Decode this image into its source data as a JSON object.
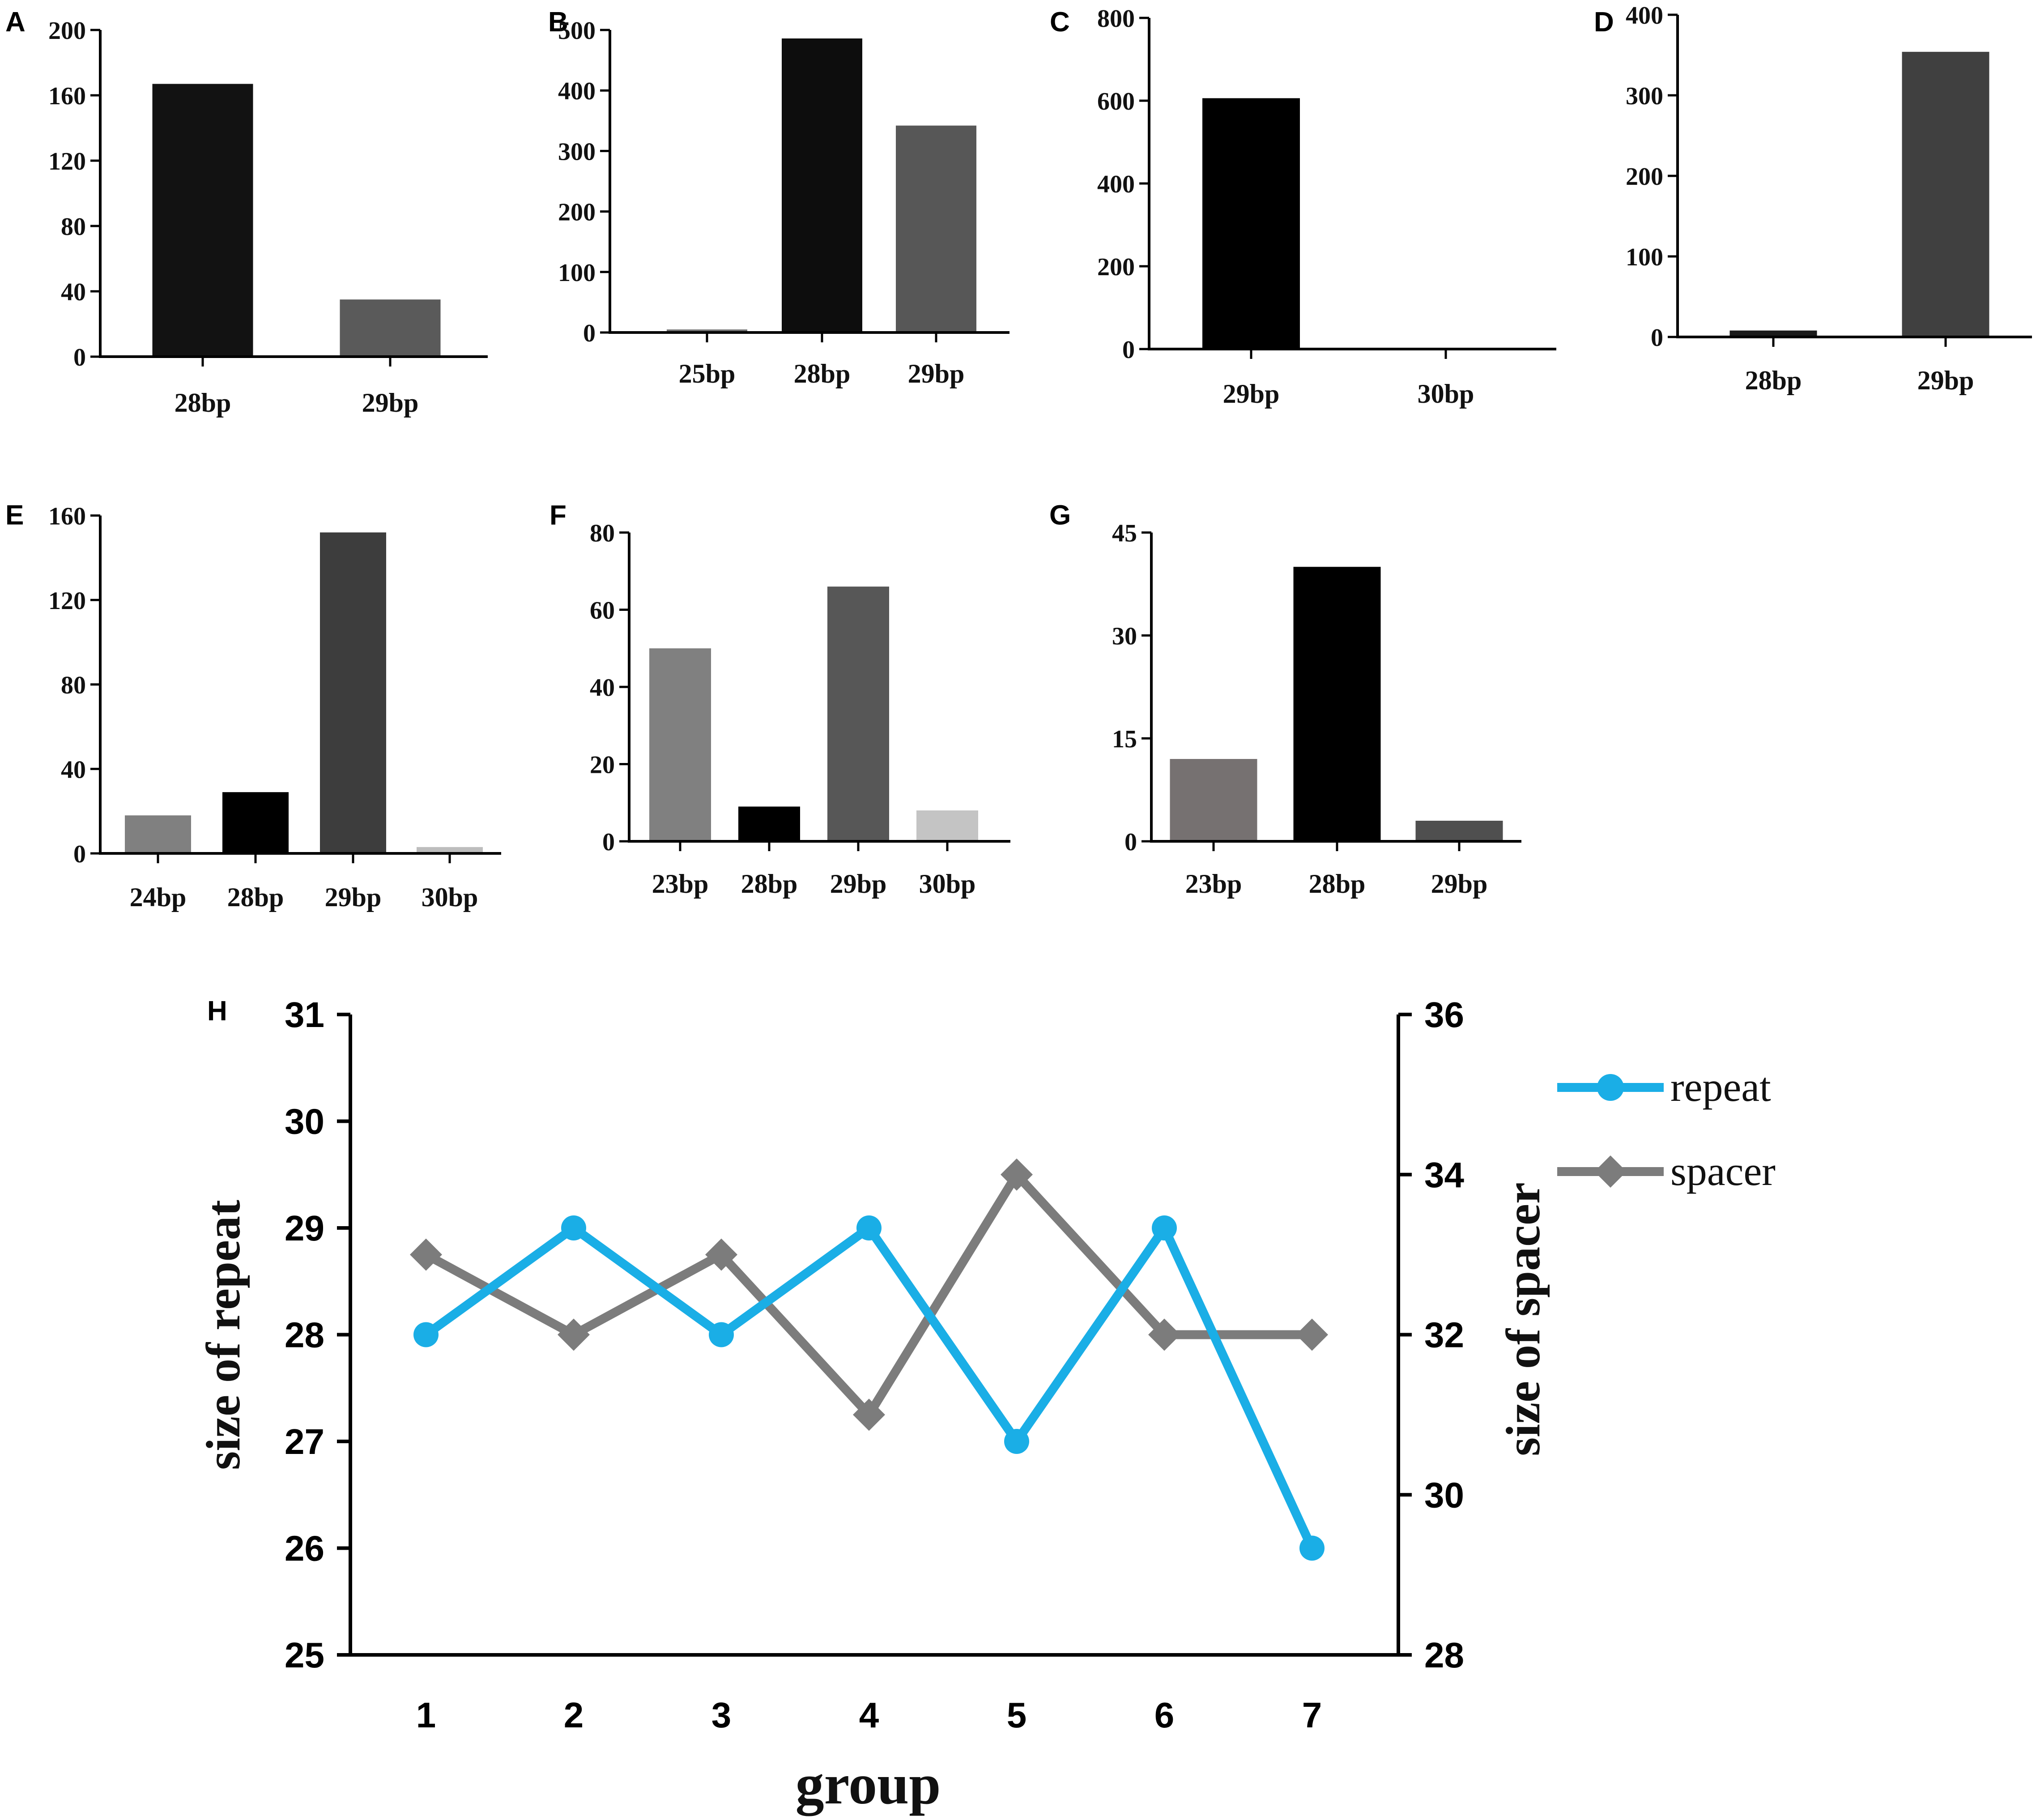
{
  "chart_data": [
    {
      "panel": "A",
      "type": "bar",
      "categories": [
        "28bp",
        "29bp"
      ],
      "values": [
        167,
        35
      ],
      "colors": [
        "#121212",
        "#5a5a5a"
      ],
      "ylim": [
        0,
        200
      ],
      "yticks": [
        0,
        40,
        80,
        120,
        160,
        200
      ]
    },
    {
      "panel": "B",
      "type": "bar",
      "categories": [
        "25bp",
        "28bp",
        "29bp"
      ],
      "values": [
        5,
        486,
        342
      ],
      "colors": [
        "#6e6e6e",
        "#0d0d0d",
        "#575757"
      ],
      "ylim": [
        0,
        500
      ],
      "yticks": [
        0,
        100,
        200,
        300,
        400,
        500
      ]
    },
    {
      "panel": "C",
      "type": "bar",
      "categories": [
        "29bp",
        "30bp"
      ],
      "values": [
        606,
        2
      ],
      "colors": [
        "#000000",
        "#7a7a7a"
      ],
      "ylim": [
        0,
        800
      ],
      "yticks": [
        0,
        200,
        400,
        600,
        800
      ]
    },
    {
      "panel": "D",
      "type": "bar",
      "categories": [
        "28bp",
        "29bp"
      ],
      "values": [
        8,
        354
      ],
      "colors": [
        "#1a1a1a",
        "#404040"
      ],
      "ylim": [
        0,
        400
      ],
      "yticks": [
        0,
        100,
        200,
        300,
        400
      ]
    },
    {
      "panel": "E",
      "type": "bar",
      "categories": [
        "24bp",
        "28bp",
        "29bp",
        "30bp"
      ],
      "values": [
        18,
        29,
        152,
        3
      ],
      "colors": [
        "#808080",
        "#000000",
        "#3d3d3d",
        "#bdbdbd"
      ],
      "ylim": [
        0,
        160
      ],
      "yticks": [
        0,
        40,
        80,
        120,
        160
      ]
    },
    {
      "panel": "F",
      "type": "bar",
      "categories": [
        "23bp",
        "28bp",
        "29bp",
        "30bp"
      ],
      "values": [
        50,
        9,
        66,
        8
      ],
      "colors": [
        "#808080",
        "#000000",
        "#575757",
        "#c4c4c4"
      ],
      "ylim": [
        0,
        80
      ],
      "yticks": [
        0,
        20,
        40,
        60,
        80
      ]
    },
    {
      "panel": "G",
      "type": "bar",
      "categories": [
        "23bp",
        "28bp",
        "29bp"
      ],
      "values": [
        12,
        40,
        3
      ],
      "colors": [
        "#767171",
        "#000000",
        "#4f4f4f"
      ],
      "ylim": [
        0,
        45
      ],
      "yticks": [
        0,
        15,
        30,
        45
      ]
    },
    {
      "panel": "H",
      "type": "line",
      "x": [
        1,
        2,
        3,
        4,
        5,
        6,
        7
      ],
      "xlabel": "group",
      "ylabel": "size of repeat",
      "ylabel_right": "size of spacer",
      "ylim": [
        25,
        31
      ],
      "yticks": [
        25,
        26,
        27,
        28,
        29,
        30,
        31
      ],
      "ylim_right": [
        28,
        36
      ],
      "yticks_right": [
        28,
        30,
        32,
        34,
        36
      ],
      "series": [
        {
          "name": "repeat",
          "axis": "left",
          "color": "#1aaee6",
          "marker": "circle",
          "values": [
            28,
            29,
            28,
            29,
            27,
            29,
            26
          ]
        },
        {
          "name": "spacer",
          "axis": "right",
          "color": "#7c7c7c",
          "marker": "diamond",
          "values": [
            33,
            32,
            33,
            31,
            34,
            32,
            32
          ]
        }
      ]
    }
  ]
}
